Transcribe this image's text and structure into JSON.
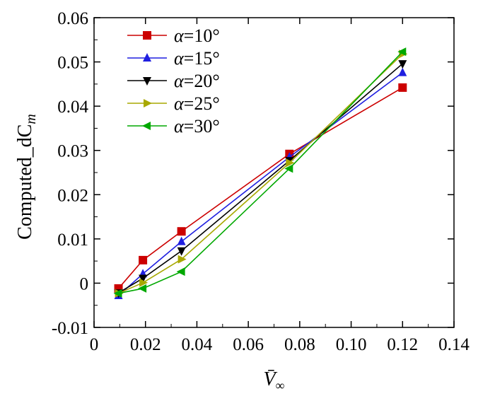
{
  "chart_data": {
    "type": "line",
    "title": "",
    "xlabel": "V̄",
    "xlabel_sub": "∞",
    "ylabel": "Computed_dC",
    "ylabel_sub": "m",
    "xlim": [
      0,
      0.14
    ],
    "ylim": [
      -0.01,
      0.06
    ],
    "x_ticks": [
      "0",
      "0.02",
      "0.04",
      "0.06",
      "0.08",
      "0.10",
      "0.12",
      "0.14"
    ],
    "y_ticks": [
      "-0.01",
      "0",
      "0.01",
      "0.02",
      "0.03",
      "0.04",
      "0.05",
      "0.06"
    ],
    "x_tick_values": [
      0,
      0.02,
      0.04,
      0.06,
      0.08,
      0.1,
      0.12,
      0.14
    ],
    "y_tick_values": [
      -0.01,
      0,
      0.01,
      0.02,
      0.03,
      0.04,
      0.05,
      0.06
    ],
    "grid": false,
    "legend_position": "top-left",
    "x": [
      0.0095,
      0.019,
      0.034,
      0.076,
      0.12
    ],
    "series": [
      {
        "name": "α=10°",
        "marker": "square",
        "color": "#cc0000",
        "values": [
          -0.0012,
          0.0052,
          0.0117,
          0.0292,
          0.0442
        ]
      },
      {
        "name": "α=15°",
        "marker": "triangle-up",
        "color": "#1f1fe0",
        "values": [
          -0.0028,
          0.0021,
          0.0094,
          0.0285,
          0.0476
        ]
      },
      {
        "name": "α=20°",
        "marker": "triangle-down",
        "color": "#000000",
        "values": [
          -0.0022,
          0.0011,
          0.0073,
          0.0277,
          0.0496
        ]
      },
      {
        "name": "α=25°",
        "marker": "triangle-right",
        "color": "#a8a800",
        "values": [
          -0.0023,
          0.0001,
          0.0054,
          0.0272,
          0.0518
        ]
      },
      {
        "name": "α=30°",
        "marker": "triangle-left",
        "color": "#00a800",
        "values": [
          -0.0023,
          -0.0012,
          0.0026,
          0.0259,
          0.0523
        ]
      }
    ]
  }
}
